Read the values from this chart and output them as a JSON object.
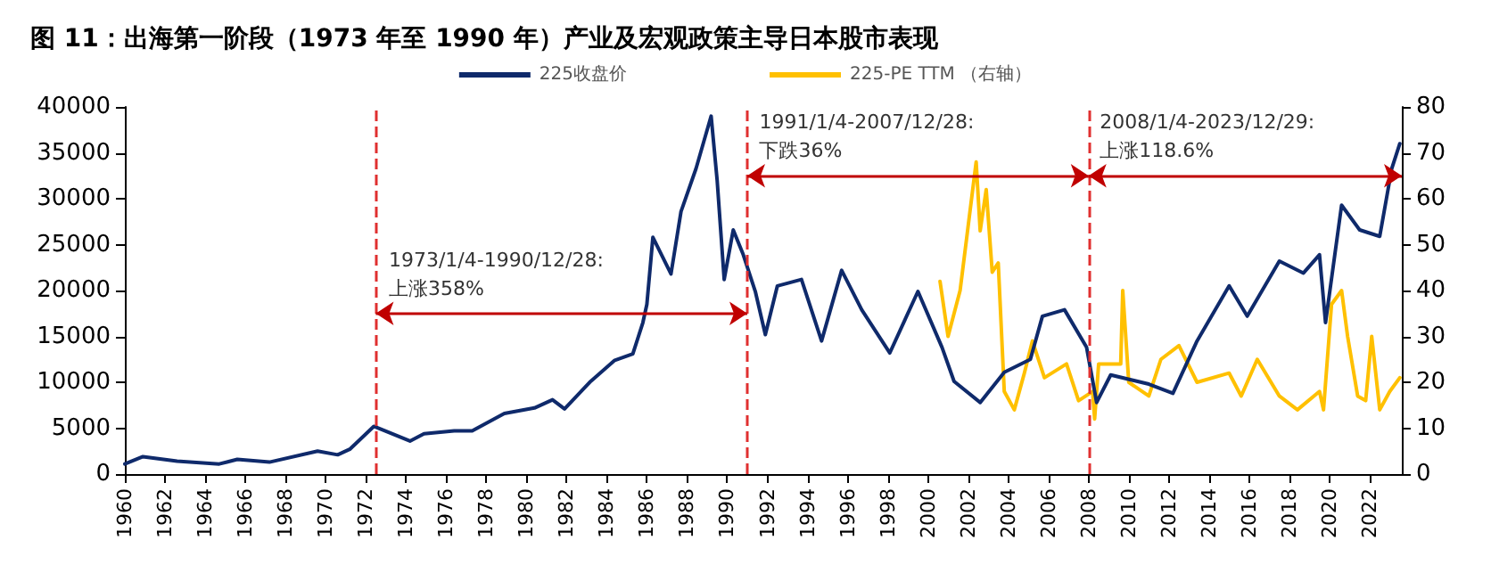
{
  "chart_data": {
    "type": "line",
    "title": "图 11：出海第一阶段（1973 年至 1990 年）产业及宏观政策主导日本股市表现",
    "series": [
      {
        "name": "225收盘价",
        "color": "#0f2a6b",
        "x": [
          1960,
          1960.9,
          1962.6,
          1964.7,
          1965.6,
          1967.2,
          1969.6,
          1970.6,
          1971.2,
          1972.4,
          1973.3,
          1974.2,
          1974.9,
          1976.4,
          1977.3,
          1978.9,
          1980.4,
          1981.3,
          1981.9,
          1983.2,
          1984.4,
          1985.3,
          1985.8,
          1986,
          1986.3,
          1987.2,
          1987.7,
          1988.45,
          1989.2,
          1989.5,
          1989.85,
          1990.3,
          1990.8,
          1991.4,
          1991.9,
          1992.5,
          1993.7,
          1994.7,
          1995.7,
          1996.7,
          1998.1,
          1999.5,
          2000.7,
          2001.3,
          2002.6,
          2003.8,
          2005.1,
          2005.7,
          2006.8,
          2007.9,
          2008.4,
          2009.1,
          2011,
          2012.2,
          2013.4,
          2015,
          2015.9,
          2017.5,
          2018.7,
          2019.5,
          2019.8,
          2020.6,
          2021.5,
          2022.5,
          2023.1,
          2023.5
        ],
        "values": [
          1100,
          1900,
          1400,
          1100,
          1600,
          1300,
          2500,
          2100,
          2700,
          5200,
          4400,
          3600,
          4400,
          4700,
          4700,
          6600,
          7200,
          8100,
          7100,
          10100,
          12400,
          13100,
          16500,
          18500,
          25800,
          21800,
          28600,
          33300,
          39000,
          32000,
          21200,
          26600,
          23900,
          19900,
          15200,
          20500,
          21200,
          14500,
          22200,
          17900,
          13200,
          19900,
          13800,
          10100,
          7800,
          11100,
          12500,
          17200,
          17900,
          13800,
          7800,
          10800,
          9800,
          8800,
          14500,
          20500,
          17200,
          23200,
          21900,
          23900,
          16500,
          29300,
          26600,
          25900,
          33300,
          36000
        ]
      },
      {
        "name": "225-PE TTM （右轴）",
        "color": "#ffc000",
        "axis": "y2",
        "x": [
          2000.6,
          2001,
          2001.6,
          2002.4,
          2002.6,
          2002.9,
          2003.2,
          2003.5,
          2003.8,
          2004.3,
          2004.8,
          2005.2,
          2005.8,
          2006.9,
          2007.5,
          2008.2,
          2008.3,
          2008.5,
          2009.6,
          2009.7,
          2010,
          2011,
          2011.6,
          2012.5,
          2013.4,
          2015,
          2015.6,
          2016.4,
          2017.5,
          2018.4,
          2019.5,
          2019.7,
          2020.1,
          2020.6,
          2020.9,
          2021.4,
          2021.8,
          2022.1,
          2022.5,
          2023,
          2023.5
        ],
        "values": [
          42,
          30,
          40,
          68,
          53,
          62,
          44,
          46,
          18,
          14,
          22,
          29,
          21,
          24,
          16,
          18,
          12,
          24,
          24,
          40,
          20,
          17,
          25,
          28,
          20,
          22,
          17,
          25,
          17,
          14,
          18,
          14,
          37,
          40,
          30,
          17,
          16,
          30,
          14,
          18,
          21
        ]
      }
    ],
    "xlim": [
      1960,
      2023.6
    ],
    "xticks": [
      1960,
      1962,
      1964,
      1966,
      1968,
      1970,
      1972,
      1974,
      1976,
      1978,
      1980,
      1982,
      1984,
      1986,
      1988,
      1990,
      1992,
      1994,
      1996,
      1998,
      2000,
      2002,
      2004,
      2006,
      2008,
      2010,
      2012,
      2014,
      2016,
      2018,
      2020,
      2022
    ],
    "ylim": [
      0,
      40000
    ],
    "yticks": [
      0,
      5000,
      10000,
      15000,
      20000,
      25000,
      30000,
      35000,
      40000
    ],
    "y2lim": [
      0,
      80
    ],
    "y2ticks": [
      0,
      10,
      20,
      30,
      40,
      50,
      60,
      70,
      80
    ],
    "ref_lines": [
      {
        "axis": "x",
        "value": 1972.5,
        "color": "#e03030",
        "line_style": "dashed"
      },
      {
        "axis": "x",
        "value": 1991,
        "color": "#e03030",
        "line_style": "dashed"
      },
      {
        "axis": "x",
        "value": 2008,
        "color": "#e03030",
        "line_style": "dashed"
      }
    ],
    "annotations": [
      {
        "text": "1973/1/4-1990/12/28:\n上涨358%",
        "x": 1972.5,
        "y": 17500
      },
      {
        "text": "1991/1/4-2007/12/28:\n下跌36%",
        "x": 1991,
        "y": 32500
      },
      {
        "text": "2008/1/4-2023/12/29:\n上涨118.6%",
        "x": 2008,
        "y": 32500
      }
    ],
    "grid": false,
    "legend": "top",
    "line_style": "solid",
    "marker": "none"
  }
}
